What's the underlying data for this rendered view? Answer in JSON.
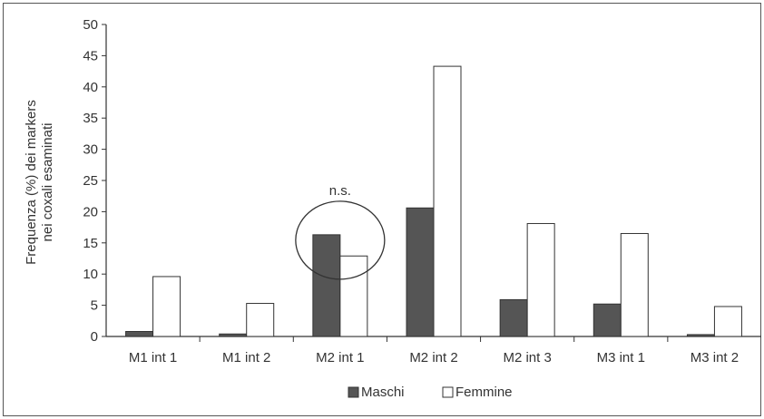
{
  "chart_data": {
    "type": "bar",
    "categories": [
      "M1 int 1",
      "M1 int 2",
      "M2 int 1",
      "M2 int 2",
      "M2 int 3",
      "M3 int 1",
      "M3 int 2"
    ],
    "series": [
      {
        "name": "Maschi",
        "values": [
          0.8,
          0.4,
          16.3,
          20.6,
          5.9,
          5.2,
          0.3
        ]
      },
      {
        "name": "Femmine",
        "values": [
          9.6,
          5.3,
          12.9,
          43.3,
          18.1,
          16.5,
          4.8
        ]
      }
    ],
    "ylabel_line1": "Frequenza (%) dei markers",
    "ylabel_line2": "nei coxali esaminati",
    "ylim": [
      0,
      50
    ],
    "yticks": [
      0,
      5,
      10,
      15,
      20,
      25,
      30,
      35,
      40,
      45,
      50
    ],
    "annotation": {
      "text": "n.s.",
      "category": "M2 int 1"
    },
    "legend_position": "bottom",
    "grid": false,
    "colors": {
      "Maschi": "#555555",
      "Femmine": "#ffffff",
      "edge": "#333333"
    }
  }
}
